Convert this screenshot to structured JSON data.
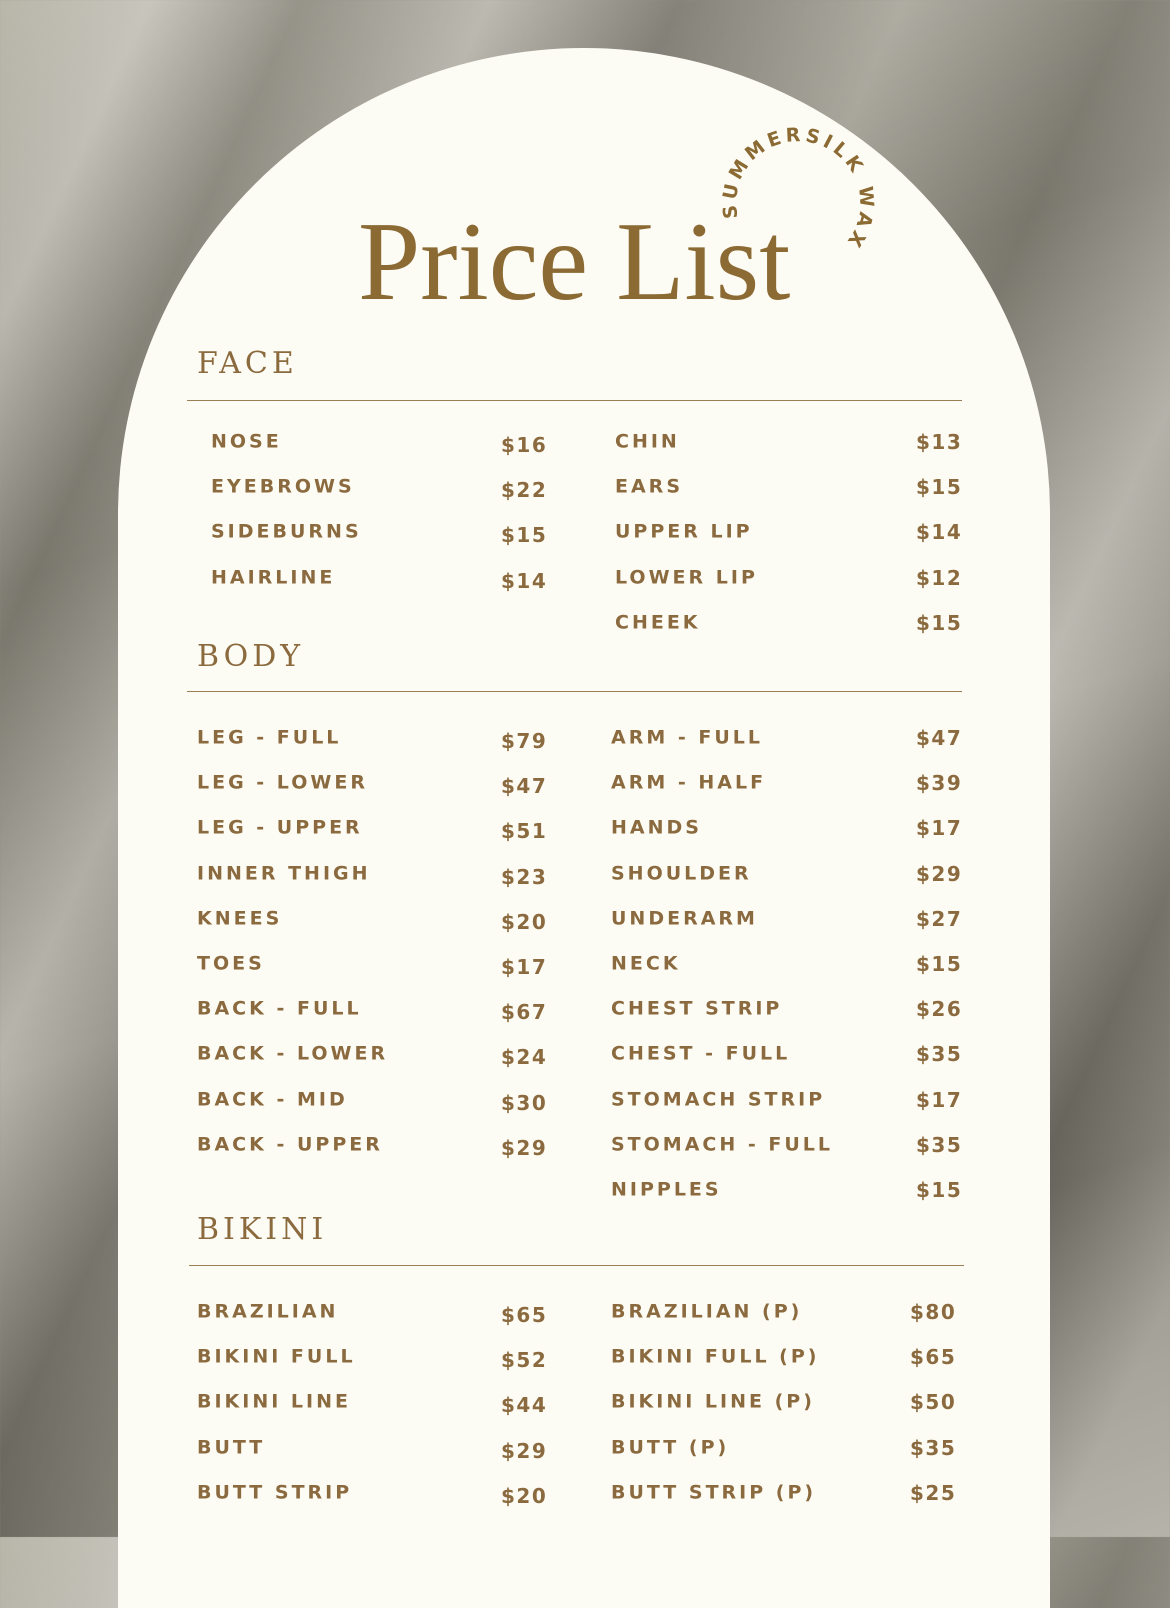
{
  "brand": "SUMMERSILK WAX",
  "title": "Price List",
  "colors": {
    "accent": "#8b6a33",
    "card": "#fdfcf4"
  },
  "sections": [
    {
      "name": "FACE",
      "left": [
        [
          "NOSE",
          "$16"
        ],
        [
          "EYEBROWS",
          "$22"
        ],
        [
          "SIDEBURNS",
          "$15"
        ],
        [
          "HAIRLINE",
          "$14"
        ]
      ],
      "right": [
        [
          "CHIN",
          "$13"
        ],
        [
          "EARS",
          "$15"
        ],
        [
          "UPPER LIP",
          "$14"
        ],
        [
          "LOWER LIP",
          "$12"
        ],
        [
          "CHEEK",
          "$15"
        ]
      ]
    },
    {
      "name": "BODY",
      "left": [
        [
          "LEG - FULL",
          "$79"
        ],
        [
          "LEG - LOWER",
          "$47"
        ],
        [
          "LEG - UPPER",
          "$51"
        ],
        [
          "INNER THIGH",
          "$23"
        ],
        [
          "KNEES",
          "$20"
        ],
        [
          "TOES",
          "$17"
        ],
        [
          "BACK - FULL",
          "$67"
        ],
        [
          "BACK - LOWER",
          "$24"
        ],
        [
          "BACK - MID",
          "$30"
        ],
        [
          "BACK - UPPER",
          "$29"
        ]
      ],
      "right": [
        [
          "ARM - FULL",
          "$47"
        ],
        [
          "ARM - HALF",
          "$39"
        ],
        [
          "HANDS",
          "$17"
        ],
        [
          "SHOULDER",
          "$29"
        ],
        [
          "UNDERARM",
          "$27"
        ],
        [
          "NECK",
          "$15"
        ],
        [
          "CHEST STRIP",
          "$26"
        ],
        [
          "CHEST - FULL",
          "$35"
        ],
        [
          "STOMACH STRIP",
          "$17"
        ],
        [
          "STOMACH - FULL",
          "$35"
        ],
        [
          "NIPPLES",
          "$15"
        ]
      ]
    },
    {
      "name": "BIKINI",
      "left": [
        [
          "BRAZILIAN",
          "$65"
        ],
        [
          "BIKINI FULL",
          "$52"
        ],
        [
          "BIKINI LINE",
          "$44"
        ],
        [
          "BUTT",
          "$29"
        ],
        [
          "BUTT STRIP",
          "$20"
        ]
      ],
      "right": [
        [
          "BRAZILIAN (P)",
          "$80"
        ],
        [
          "BIKINI FULL (P)",
          "$65"
        ],
        [
          "BIKINI LINE (P)",
          "$50"
        ],
        [
          "BUTT (P)",
          "$35"
        ],
        [
          "BUTT STRIP (P)",
          "$25"
        ]
      ]
    }
  ]
}
